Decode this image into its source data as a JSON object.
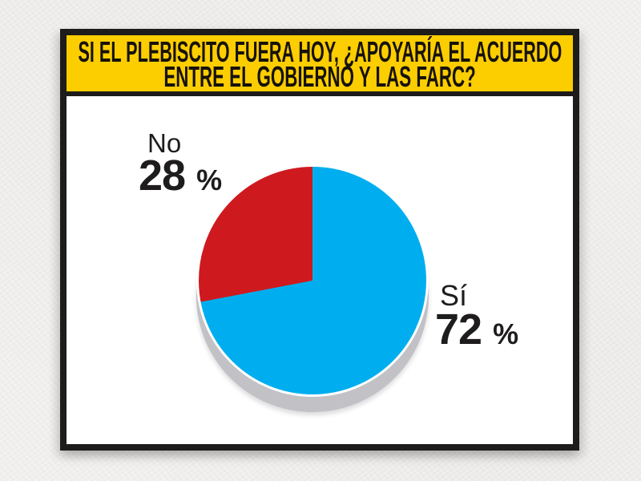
{
  "header": {
    "line1": "SI EL PLEBISCITO FUERA HOY, ¿APOYARÍA EL ACUERDO",
    "line2": "ENTRE EL GOBIERNO Y LAS FARC?",
    "background_color": "#FCCE00",
    "text_color": "#17120a"
  },
  "chart_data": {
    "type": "pie",
    "title": "SI EL PLEBISCITO FUERA HOY, ¿APOYARÍA EL ACUERDO ENTRE EL GOBIERNO Y LAS FARC?",
    "slices": [
      {
        "label": "Sí",
        "value": 72,
        "value_label": "72",
        "unit": "%",
        "color": "#00AEEF"
      },
      {
        "label": "No",
        "value": 28,
        "value_label": "28",
        "unit": "%",
        "color": "#CE1A1E"
      }
    ],
    "start_angle": "top",
    "direction": "clockwise",
    "legend": "none",
    "label_style": "direct labels beside slices",
    "effect": "3d offset base",
    "base_color": "#C2C1C6"
  }
}
